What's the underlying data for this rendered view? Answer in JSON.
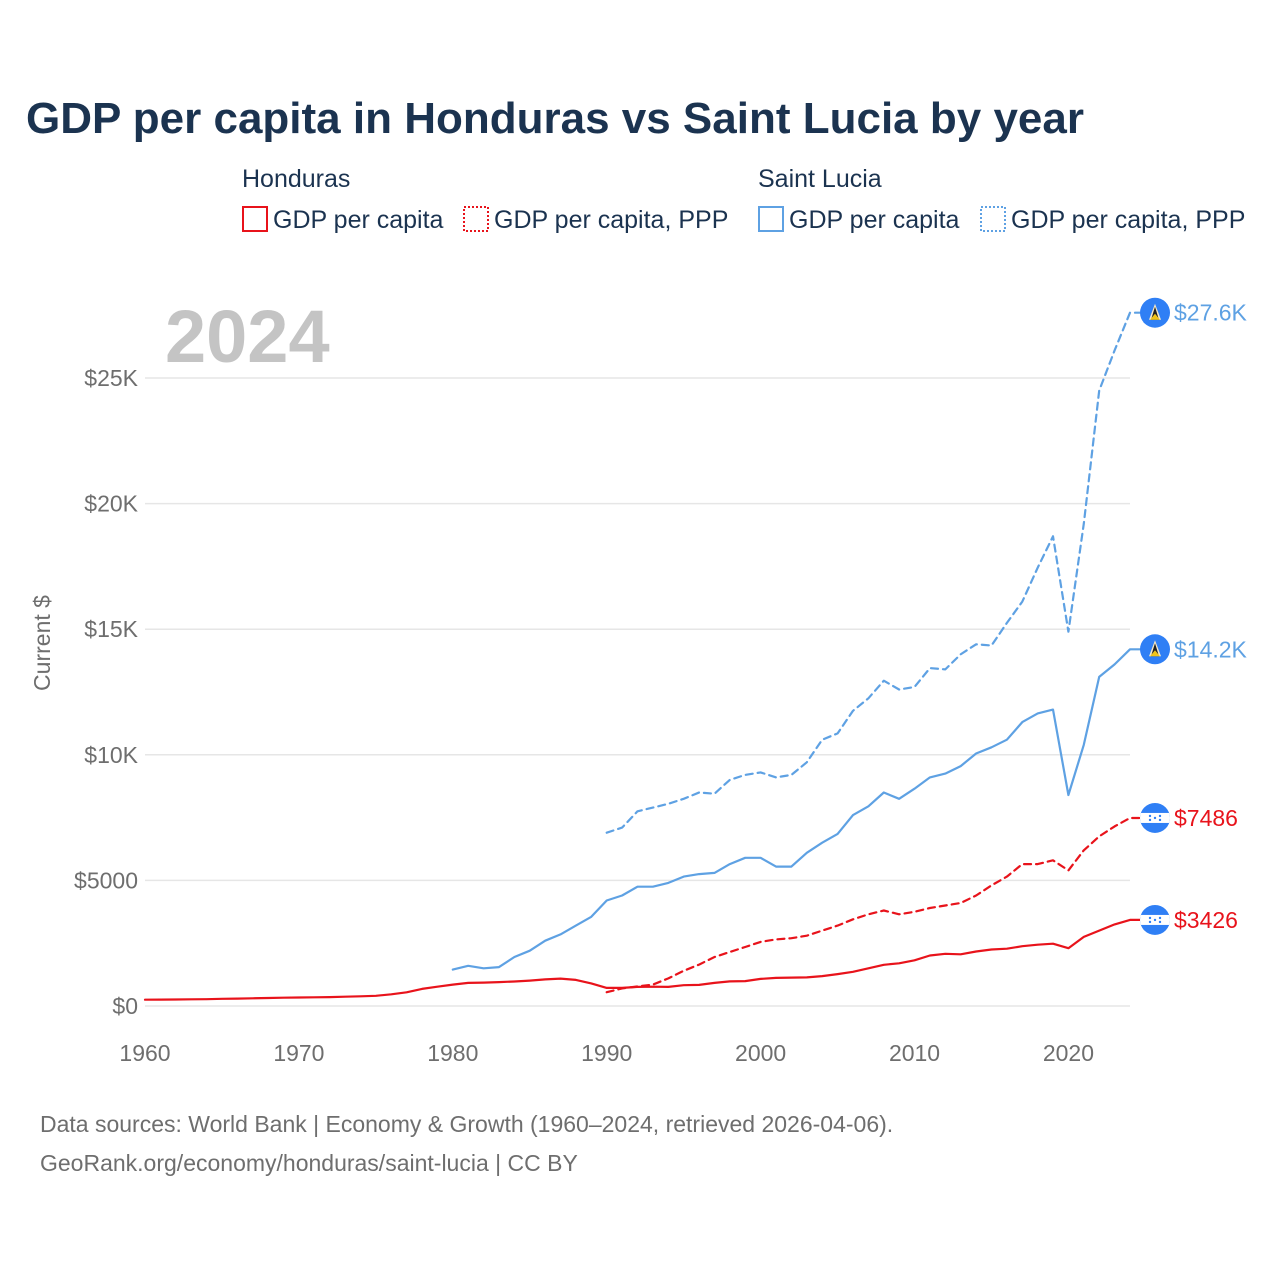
{
  "colors": {
    "honduras": "#e8131b",
    "saint_lucia": "#5ea1e3",
    "flag_blue": "#2f7ff5"
  },
  "chart_data": {
    "type": "line",
    "title": "GDP per capita in Honduras vs Saint Lucia by year",
    "year_label": "2024",
    "ylabel": "Current $",
    "xlabel": "",
    "xlim": [
      1960,
      2024
    ],
    "ylim": [
      0,
      28000
    ],
    "x_ticks": [
      1960,
      1970,
      1980,
      1990,
      2000,
      2010,
      2020
    ],
    "y_ticks": [
      {
        "value": 0,
        "label": "$0"
      },
      {
        "value": 5000,
        "label": "$5000"
      },
      {
        "value": 10000,
        "label": "$10K"
      },
      {
        "value": 15000,
        "label": "$15K"
      },
      {
        "value": 20000,
        "label": "$20K"
      },
      {
        "value": 25000,
        "label": "$25K"
      }
    ],
    "legend": {
      "groups": [
        {
          "country": "Honduras",
          "items": [
            "GDP per capita",
            "GDP per capita, PPP"
          ]
        },
        {
          "country": "Saint Lucia",
          "items": [
            "GDP per capita",
            "GDP per capita, PPP"
          ]
        }
      ]
    },
    "series": [
      {
        "name": "Honduras GDP per capita",
        "country": "honduras",
        "dashed": false,
        "end_label": "$3426",
        "x": [
          1960,
          1961,
          1962,
          1963,
          1964,
          1965,
          1966,
          1967,
          1968,
          1969,
          1970,
          1971,
          1972,
          1973,
          1974,
          1975,
          1976,
          1977,
          1978,
          1979,
          1980,
          1981,
          1982,
          1983,
          1984,
          1985,
          1986,
          1987,
          1988,
          1989,
          1990,
          1991,
          1992,
          1993,
          1994,
          1995,
          1996,
          1997,
          1998,
          1999,
          2000,
          2001,
          2002,
          2003,
          2004,
          2005,
          2006,
          2007,
          2008,
          2009,
          2010,
          2011,
          2012,
          2013,
          2014,
          2015,
          2016,
          2017,
          2018,
          2019,
          2020,
          2021,
          2022,
          2023,
          2024
        ],
        "values": [
          250,
          255,
          260,
          265,
          270,
          285,
          295,
          305,
          320,
          330,
          340,
          345,
          355,
          370,
          385,
          405,
          465,
          545,
          680,
          770,
          850,
          920,
          930,
          950,
          975,
          1010,
          1060,
          1090,
          1040,
          900,
          720,
          720,
          760,
          770,
          760,
          830,
          840,
          920,
          980,
          990,
          1080,
          1120,
          1130,
          1140,
          1190,
          1270,
          1360,
          1500,
          1640,
          1700,
          1820,
          2010,
          2080,
          2060,
          2170,
          2250,
          2280,
          2380,
          2440,
          2480,
          2300,
          2750,
          3000,
          3250,
          3426
        ]
      },
      {
        "name": "Honduras GDP per capita, PPP",
        "country": "honduras",
        "dashed": true,
        "end_label": "$7486",
        "x": [
          1990,
          1991,
          1992,
          1993,
          1994,
          1995,
          1996,
          1997,
          1998,
          1999,
          2000,
          2001,
          2002,
          2003,
          2004,
          2005,
          2006,
          2007,
          2008,
          2009,
          2010,
          2011,
          2012,
          2013,
          2014,
          2015,
          2016,
          2017,
          2018,
          2019,
          2020,
          2021,
          2022,
          2023,
          2024
        ],
        "values": [
          550,
          700,
          780,
          850,
          1100,
          1400,
          1650,
          1950,
          2150,
          2350,
          2550,
          2650,
          2700,
          2800,
          3000,
          3200,
          3450,
          3650,
          3800,
          3650,
          3750,
          3900,
          4000,
          4100,
          4400,
          4800,
          5150,
          5650,
          5650,
          5800,
          5400,
          6200,
          6750,
          7150,
          7486
        ]
      },
      {
        "name": "Saint Lucia GDP per capita",
        "country": "saint_lucia",
        "dashed": false,
        "end_label": "$14.2K",
        "x": [
          1980,
          1981,
          1982,
          1983,
          1984,
          1985,
          1986,
          1987,
          1988,
          1989,
          1990,
          1991,
          1992,
          1993,
          1994,
          1995,
          1996,
          1997,
          1998,
          1999,
          2000,
          2001,
          2002,
          2003,
          2004,
          2005,
          2006,
          2007,
          2008,
          2009,
          2010,
          2011,
          2012,
          2013,
          2014,
          2015,
          2016,
          2017,
          2018,
          2019,
          2020,
          2021,
          2022,
          2023,
          2024
        ],
        "values": [
          1450,
          1600,
          1500,
          1550,
          1950,
          2200,
          2600,
          2850,
          3200,
          3550,
          4200,
          4400,
          4750,
          4750,
          4900,
          5150,
          5250,
          5300,
          5650,
          5900,
          5900,
          5550,
          5550,
          6100,
          6500,
          6850,
          7600,
          7950,
          8500,
          8250,
          8650,
          9100,
          9250,
          9550,
          10050,
          10300,
          10600,
          11300,
          11650,
          11800,
          8400,
          10400,
          13100,
          13600,
          14200
        ]
      },
      {
        "name": "Saint Lucia GDP per capita, PPP",
        "country": "saint_lucia",
        "dashed": true,
        "end_label": "$27.6K",
        "x": [
          1990,
          1991,
          1992,
          1993,
          1994,
          1995,
          1996,
          1997,
          1998,
          1999,
          2000,
          2001,
          2002,
          2003,
          2004,
          2005,
          2006,
          2007,
          2008,
          2009,
          2010,
          2011,
          2012,
          2013,
          2014,
          2015,
          2016,
          2017,
          2018,
          2019,
          2020,
          2021,
          2022,
          2023,
          2024
        ],
        "values": [
          6900,
          7100,
          7750,
          7900,
          8050,
          8250,
          8500,
          8450,
          9000,
          9200,
          9300,
          9100,
          9200,
          9700,
          10600,
          10850,
          11750,
          12250,
          12950,
          12600,
          12700,
          13450,
          13400,
          14000,
          14400,
          14350,
          15250,
          16100,
          17450,
          18700,
          14900,
          19200,
          24500,
          26100,
          27600
        ]
      }
    ]
  },
  "source": {
    "line1": "Data sources: World Bank | Economy & Growth (1960–2024, retrieved 2026-04-06).",
    "line2": "GeoRank.org/economy/honduras/saint-lucia | CC BY"
  }
}
